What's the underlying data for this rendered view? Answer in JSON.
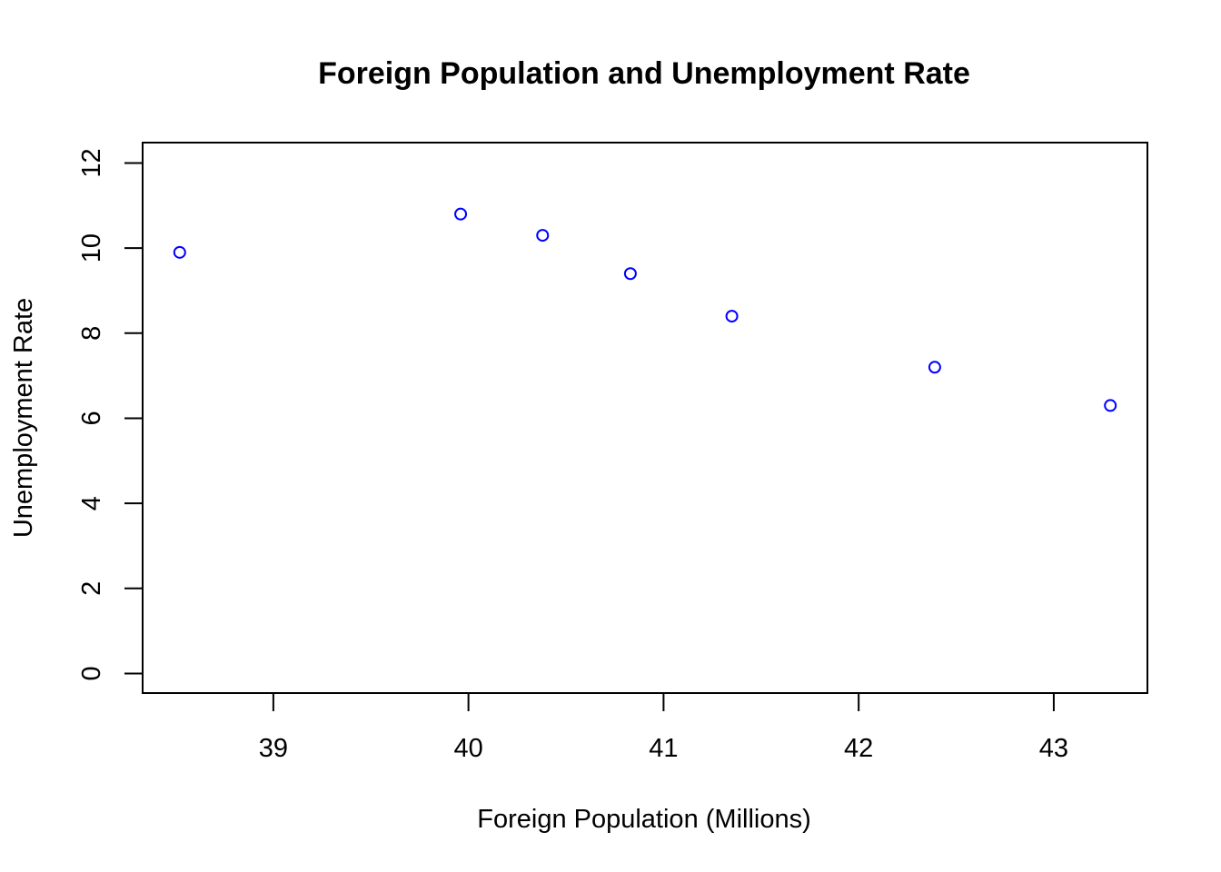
{
  "chart_data": {
    "type": "scatter",
    "title": "Foreign Population and Unemployment Rate",
    "xlabel": "Foreign Population (Millions)",
    "ylabel": "Unemployment Rate",
    "xlim": [
      38.33,
      43.48
    ],
    "ylim": [
      -0.46,
      12.48
    ],
    "xticks": [
      39,
      40,
      41,
      42,
      43
    ],
    "yticks": [
      0,
      2,
      4,
      6,
      8,
      10,
      12
    ],
    "grid": false,
    "marker": "open-circle",
    "point_color": "#0000ff",
    "points": [
      {
        "x": 38.52,
        "y": 9.9
      },
      {
        "x": 39.96,
        "y": 10.8
      },
      {
        "x": 40.38,
        "y": 10.3
      },
      {
        "x": 40.83,
        "y": 9.4
      },
      {
        "x": 41.35,
        "y": 8.4
      },
      {
        "x": 42.39,
        "y": 7.2
      },
      {
        "x": 43.29,
        "y": 6.3
      }
    ]
  }
}
